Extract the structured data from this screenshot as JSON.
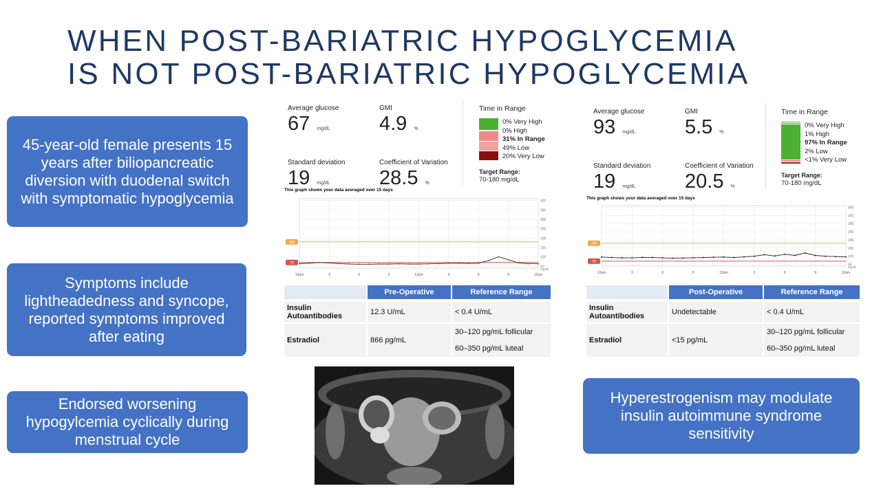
{
  "title": {
    "line1": "WHEN POST-BARIATRIC HYPOGLYCEMIA",
    "line2": "IS NOT POST-BARIATRIC HYPOGLYCEMIA"
  },
  "callouts": [
    "45-year-old female presents 15 years after biliopancreatic diversion with duodenal switch with symptomatic hypoglycemia",
    "Symptoms include lightheadedness and syncope, reported symptoms improved after eating",
    "Endorsed worsening hypogylcemia cyclically during menstrual cycle",
    "Hyperestrogenism may modulate insulin autoimmune syndrome sensitivity"
  ],
  "panels": [
    {
      "metrics": [
        {
          "label": "Average glucose",
          "value": "67",
          "unit": "mg/dL"
        },
        {
          "label": "GMI",
          "value": "4.9",
          "unit": "%"
        },
        {
          "label": "Standard deviation",
          "value": "19",
          "unit": "mg/dL"
        },
        {
          "label": "Coefficient of Variation",
          "value": "28.5",
          "unit": "%"
        }
      ],
      "time_in_range": {
        "title": "Time in Range",
        "items": [
          "0% Very High",
          "0% High",
          "31% In Range",
          "49% Low",
          "20% Very Low"
        ],
        "target_label": "Target Range:",
        "target": "70-180 mg/dL"
      },
      "graph": {
        "caption": "This graph shows your data averaged over 15 days",
        "ylim": [
          40,
          410
        ],
        "yticks": [
          50,
          100,
          150,
          200,
          250,
          300,
          350,
          400
        ],
        "unit": "mg/dL",
        "xlim": [
          0,
          24
        ],
        "xticks": [
          {
            "value": 0,
            "label": "12am"
          },
          3,
          6,
          9,
          {
            "value": 12,
            "label": "12pm"
          },
          {
            "value": 15,
            "label": "3"
          },
          {
            "value": 18,
            "label": "6"
          },
          {
            "value": 21,
            "label": "9"
          },
          {
            "value": 24,
            "label": "12am"
          }
        ],
        "targets": [
          180,
          70
        ],
        "curve": {
          "x": [
            0,
            1,
            2,
            3,
            4,
            5,
            6,
            7,
            8,
            9,
            10,
            11,
            12,
            13,
            14,
            15,
            16,
            17,
            18,
            19,
            20,
            21,
            22,
            23,
            24
          ],
          "y": [
            64,
            66,
            70,
            68,
            64,
            62,
            61,
            61,
            62,
            62,
            63,
            62,
            62,
            63,
            64,
            66,
            66,
            65,
            66,
            80,
            100,
            85,
            68,
            64,
            63
          ]
        }
      },
      "table": {
        "headers": [
          "Pre-Operative",
          "Reference Range"
        ],
        "rows": [
          [
            "Insulin Autoantibodies",
            "12.3 U/mL",
            [
              "< 0.4 U/mL"
            ]
          ],
          [
            "Estradiol",
            "866 pg/mL",
            [
              "30–120 pg/mL follicular",
              "60–350 pg/mL luteal"
            ]
          ]
        ]
      }
    },
    {
      "metrics": [
        {
          "label": "Average glucose",
          "value": "93",
          "unit": "mg/dL"
        },
        {
          "label": "GMI",
          "value": "5.5",
          "unit": "%"
        },
        {
          "label": "Standard deviation",
          "value": "19",
          "unit": "mg/dL"
        },
        {
          "label": "Coefficient of Variation",
          "value": "20.5",
          "unit": "%"
        }
      ],
      "time_in_range": {
        "title": "Time in Range",
        "items": [
          "0% Very High",
          "1% High",
          "97% In Range",
          "2% Low",
          "<1% Very Low"
        ],
        "target_label": "Target Range:",
        "target": "70-180 mg/dL"
      },
      "graph": {
        "caption": "This graph shows your data averaged over 15 days",
        "ylim": [
          40,
          410
        ],
        "yticks": [
          50,
          100,
          150,
          200,
          250,
          300,
          350,
          400
        ],
        "unit": "mg/dL",
        "xlim": [
          0,
          24
        ],
        "xticks": [
          {
            "value": 0,
            "label": "12am"
          },
          3,
          6,
          9,
          {
            "value": 12,
            "label": "12pm"
          },
          {
            "value": 15,
            "label": "3"
          },
          {
            "value": 18,
            "label": "6"
          },
          {
            "value": 21,
            "label": "9"
          },
          {
            "value": 24,
            "label": "12am"
          }
        ],
        "targets": [
          180,
          70
        ],
        "curve": {
          "x": [
            0,
            1,
            2,
            3,
            4,
            5,
            6,
            7,
            8,
            9,
            10,
            11,
            12,
            13,
            14,
            15,
            16,
            17,
            18,
            19,
            20,
            21,
            22,
            23,
            24
          ],
          "y": [
            95,
            92,
            90,
            90,
            93,
            92,
            90,
            88,
            89,
            91,
            92,
            94,
            95,
            92,
            96,
            100,
            110,
            102,
            112,
            105,
            120,
            105,
            100,
            98,
            96
          ]
        }
      },
      "table": {
        "headers": [
          "Post-Operative",
          "Reference Range"
        ],
        "rows": [
          [
            "Insulin Autoantibodies",
            "Undetectable",
            [
              "< 0.4 U/mL"
            ]
          ],
          [
            "Estradiol",
            "<15 pg/mL",
            [
              "30–120 pg/mL follicular",
              "60–350 pg/mL luteal"
            ]
          ]
        ]
      }
    }
  ]
}
